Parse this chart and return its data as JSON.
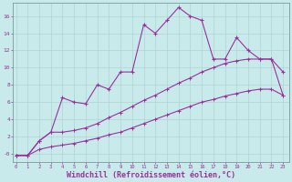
{
  "background_color": "#c8eaea",
  "line_color": "#9b309b",
  "grid_color": "#aed4d4",
  "xlabel": "Windchill (Refroidissement éolien,°C)",
  "xlabel_fontsize": 6.0,
  "xtick_labels": [
    "0",
    "1",
    "2",
    "3",
    "4",
    "5",
    "6",
    "7",
    "8",
    "9",
    "10",
    "11",
    "12",
    "13",
    "14",
    "15",
    "16",
    "17",
    "18",
    "19",
    "20",
    "21",
    "22",
    "23"
  ],
  "ytick_vals": [
    0,
    2,
    4,
    6,
    8,
    10,
    12,
    14,
    16
  ],
  "ytick_labels": [
    "-0",
    "2",
    "4",
    "6",
    "8",
    "10",
    "12",
    "14",
    "16"
  ],
  "ylim": [
    -1.0,
    17.5
  ],
  "xlim": [
    -0.3,
    23.5
  ],
  "series1_x": [
    0,
    1,
    2,
    3,
    4,
    5,
    6,
    7,
    8,
    9,
    10,
    11,
    12,
    13,
    14,
    15,
    16,
    17,
    18,
    19,
    20,
    21,
    22,
    23
  ],
  "series1_y": [
    -0.2,
    -0.2,
    1.5,
    2.5,
    6.5,
    6.0,
    5.8,
    8.0,
    7.5,
    9.5,
    9.5,
    15.0,
    14.0,
    15.5,
    17.0,
    16.0,
    15.5,
    11.0,
    11.0,
    13.5,
    12.0,
    11.0,
    11.0,
    9.5
  ],
  "series2_x": [
    0,
    1,
    2,
    3,
    4,
    5,
    6,
    7,
    8,
    9,
    10,
    11,
    12,
    13,
    14,
    15,
    16,
    17,
    18,
    19,
    20,
    21,
    22,
    23
  ],
  "series2_y": [
    -0.2,
    -0.2,
    1.5,
    2.5,
    2.5,
    2.7,
    3.0,
    3.5,
    4.2,
    4.8,
    5.5,
    6.2,
    6.8,
    7.5,
    8.2,
    8.8,
    9.5,
    10.0,
    10.5,
    10.8,
    11.0,
    11.0,
    11.0,
    6.8
  ],
  "series3_x": [
    0,
    1,
    2,
    3,
    4,
    5,
    6,
    7,
    8,
    9,
    10,
    11,
    12,
    13,
    14,
    15,
    16,
    17,
    18,
    19,
    20,
    21,
    22,
    23
  ],
  "series3_y": [
    -0.2,
    -0.2,
    0.5,
    0.8,
    1.0,
    1.2,
    1.5,
    1.8,
    2.2,
    2.5,
    3.0,
    3.5,
    4.0,
    4.5,
    5.0,
    5.5,
    6.0,
    6.3,
    6.7,
    7.0,
    7.3,
    7.5,
    7.5,
    6.8
  ]
}
